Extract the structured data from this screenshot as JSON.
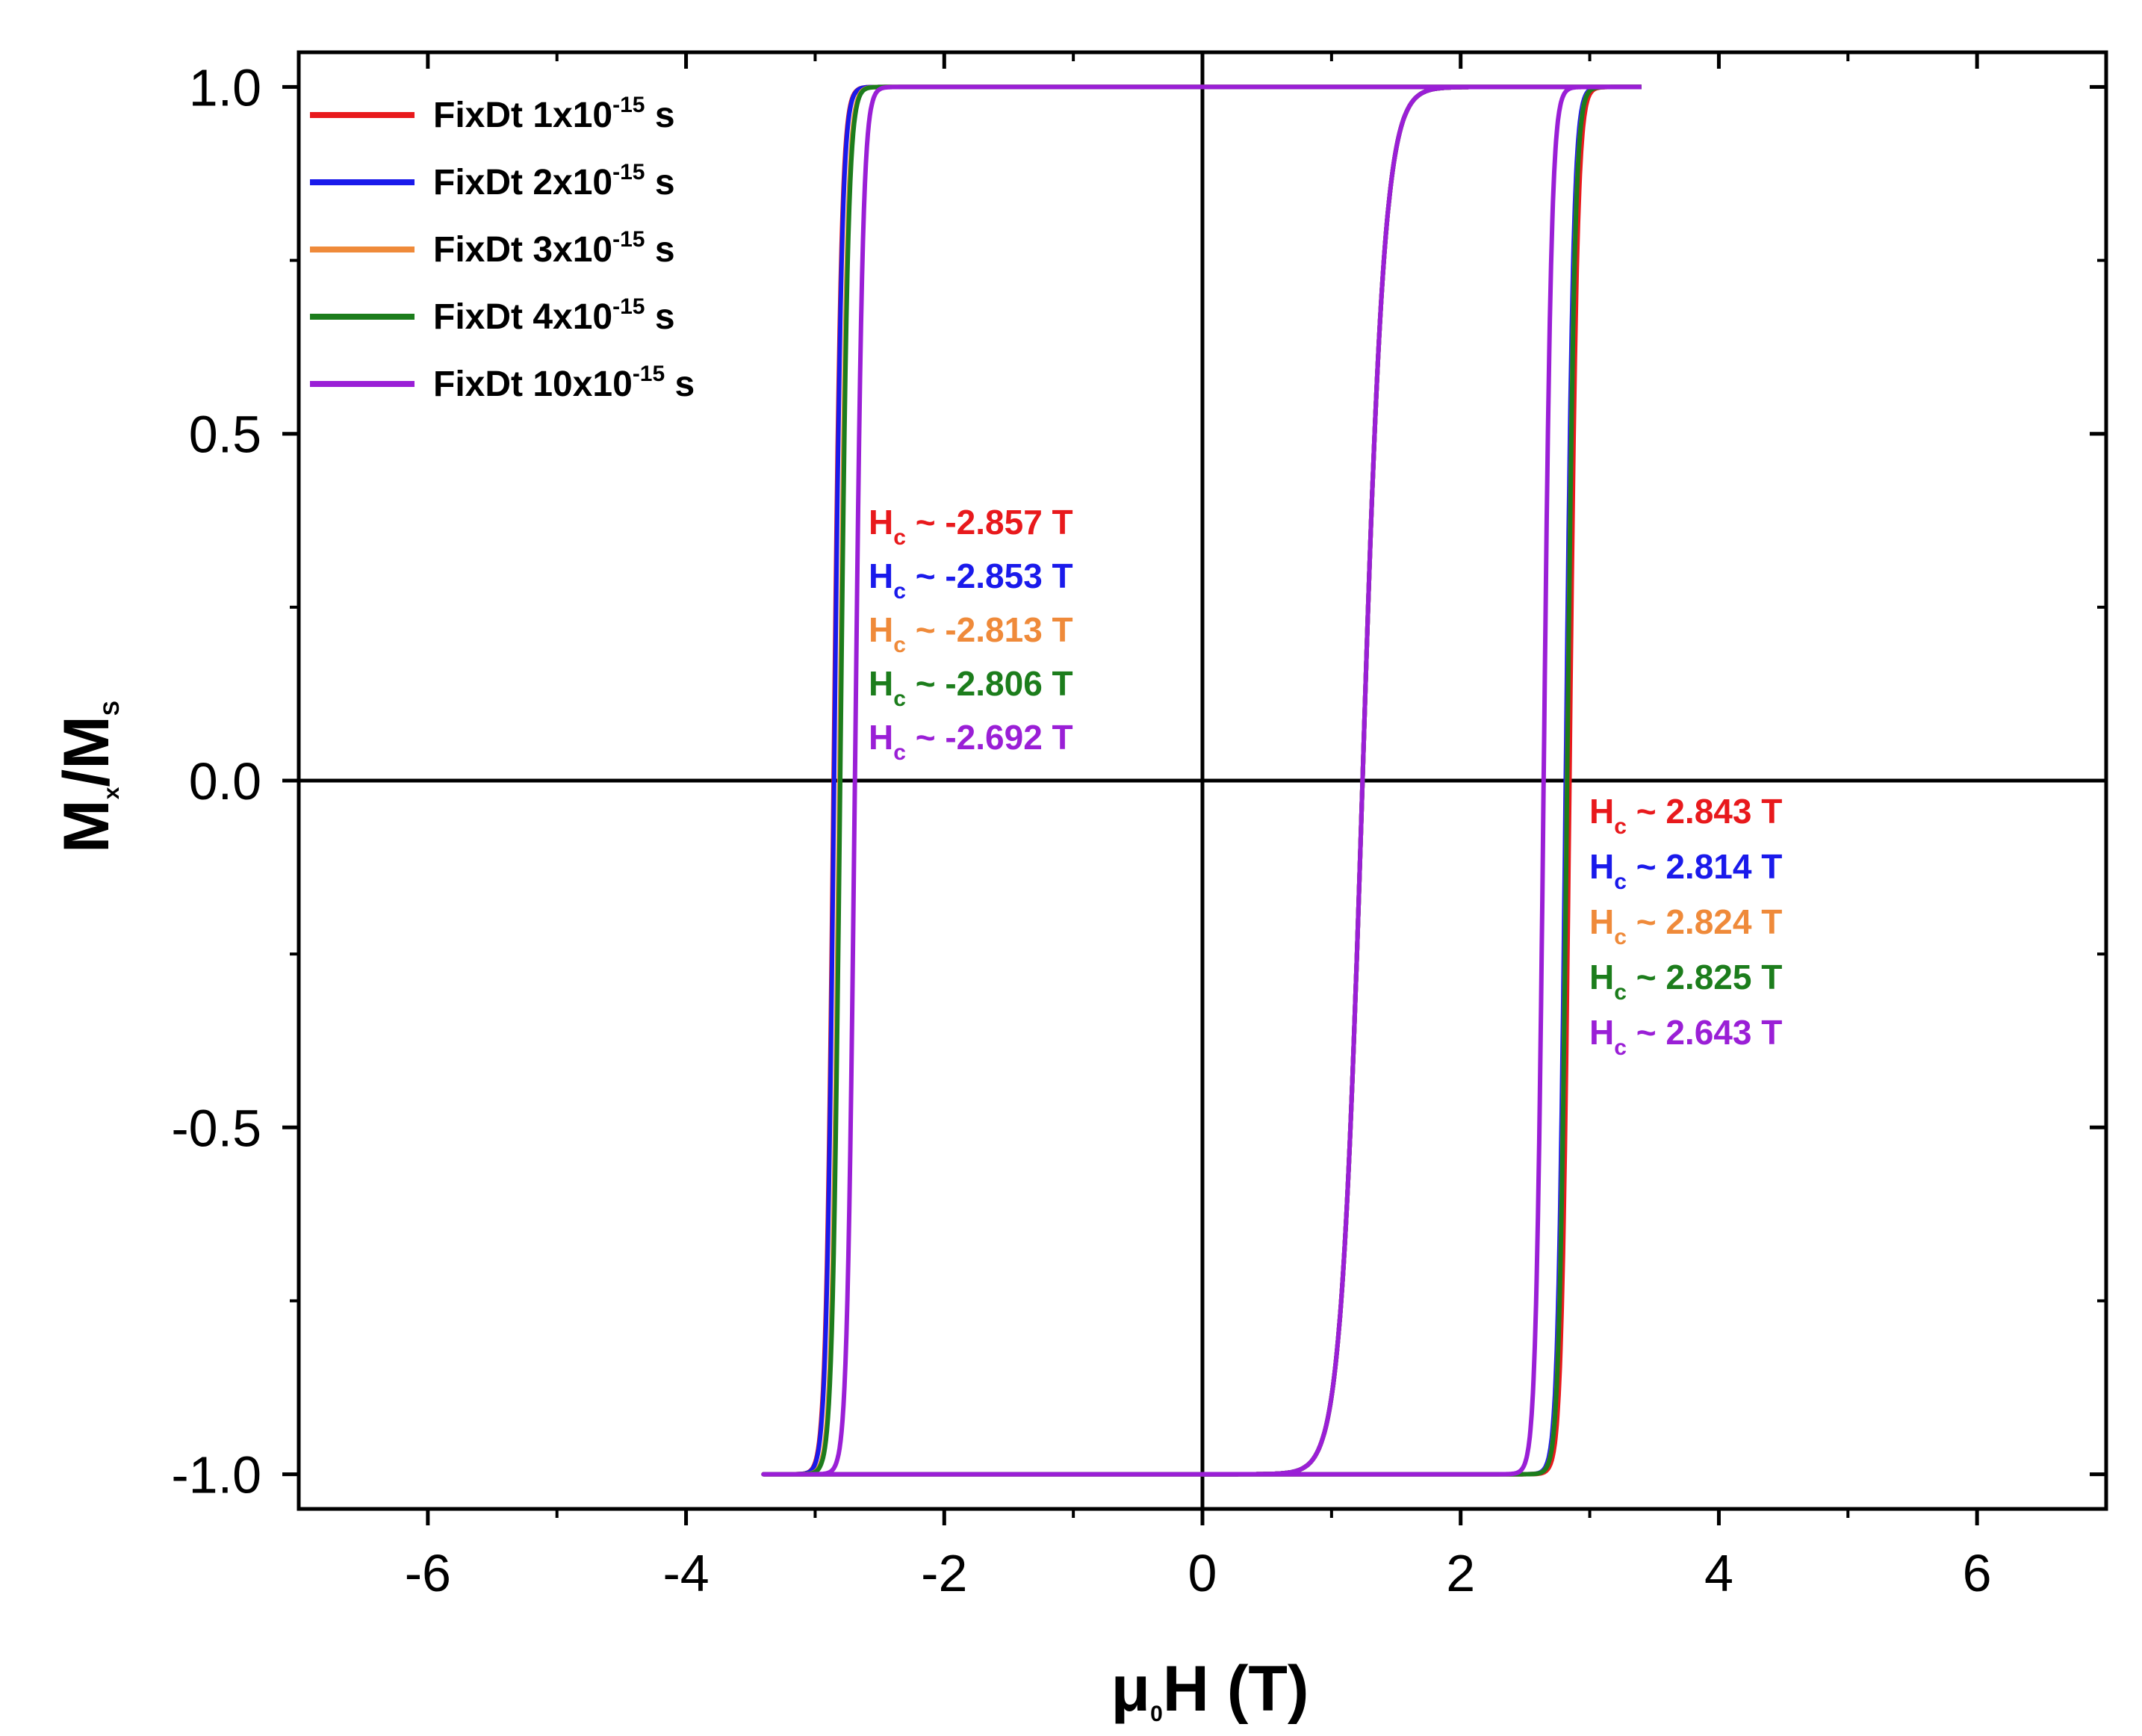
{
  "chart_data": {
    "type": "line",
    "title": "",
    "xlabel": {
      "prefix": "μ",
      "sub": "0",
      "suffix": "H (T)"
    },
    "ylabel": {
      "m": "M",
      "m_sub": "x",
      "slash": "/",
      "s": "M",
      "s_sub": "S"
    },
    "xlim": [
      -7,
      7
    ],
    "ylim": [
      -1.05,
      1.05
    ],
    "x_ticks": [
      -6,
      -4,
      -2,
      0,
      2,
      4,
      6
    ],
    "x_tick_labels": [
      "-6",
      "-4",
      "-2",
      "0",
      "2",
      "4",
      "6"
    ],
    "x_minor_ticks": [
      -5,
      -3,
      -1,
      1,
      3,
      5
    ],
    "y_ticks": [
      -1.0,
      -0.5,
      0.0,
      0.5,
      1.0
    ],
    "y_tick_labels": [
      "-1.0",
      "-0.5",
      "0.0",
      "0.5",
      "1.0"
    ],
    "y_minor_ticks": [
      -0.75,
      -0.25,
      0.25,
      0.75
    ],
    "zero_lines": true,
    "legend_position": "top-left",
    "series": [
      {
        "name": "FixDt 1x10-15 s",
        "label_prefix": "FixDt 1x10",
        "exponent": "-15",
        "label_suffix": " s",
        "color": "#e8191c",
        "hc_down": -2.857,
        "hc_up": 2.843,
        "hc_inner": 1.24,
        "x_max": 3.4,
        "x_min": -3.4,
        "anno_neg": "H",
        "anno_neg_sub": "c",
        "anno_neg_val": " ~ -2.857 T",
        "anno_pos": "H",
        "anno_pos_sub": "c",
        "anno_pos_val": " ~ 2.843 T"
      },
      {
        "name": "FixDt 2x10-15 s",
        "label_prefix": "FixDt 2x10",
        "exponent": "-15",
        "label_suffix": " s",
        "color": "#1a1aeb",
        "hc_down": -2.853,
        "hc_up": 2.814,
        "hc_inner": 1.24,
        "x_max": 3.4,
        "x_min": -3.4,
        "anno_neg": "H",
        "anno_neg_sub": "c",
        "anno_neg_val": " ~ -2.853 T",
        "anno_pos": "H",
        "anno_pos_sub": "c",
        "anno_pos_val": " ~ 2.814 T"
      },
      {
        "name": "FixDt 3x10-15 s",
        "label_prefix": "FixDt 3x10",
        "exponent": "-15",
        "label_suffix": " s",
        "color": "#ef8a3a",
        "hc_down": -2.813,
        "hc_up": 2.824,
        "hc_inner": 1.24,
        "x_max": 3.4,
        "x_min": -3.4,
        "anno_neg": "H",
        "anno_neg_sub": "c",
        "anno_neg_val": " ~ -2.813 T",
        "anno_pos": "H",
        "anno_pos_sub": "c",
        "anno_pos_val": " ~ 2.824 T"
      },
      {
        "name": "FixDt 4x10-15 s",
        "label_prefix": "FixDt 4x10",
        "exponent": "-15",
        "label_suffix": " s",
        "color": "#1c7d1c",
        "hc_down": -2.806,
        "hc_up": 2.825,
        "hc_inner": 1.24,
        "x_max": 3.4,
        "x_min": -3.4,
        "anno_neg": "H",
        "anno_neg_sub": "c",
        "anno_neg_val": " ~ -2.806 T",
        "anno_pos": "H",
        "anno_pos_sub": "c",
        "anno_pos_val": " ~ 2.825 T"
      },
      {
        "name": "FixDt 10x10-15 s",
        "label_prefix": "FixDt 10x10",
        "exponent": "-15",
        "label_suffix": " s",
        "color": "#9a1fd6",
        "hc_down": -2.692,
        "hc_up": 2.643,
        "hc_inner": 1.24,
        "x_max": 3.4,
        "x_min": -3.4,
        "anno_neg": "H",
        "anno_neg_sub": "c",
        "anno_neg_val": " ~ -2.692 T",
        "anno_pos": "H",
        "anno_pos_sub": "c",
        "anno_pos_val": " ~ 2.643 T"
      }
    ]
  }
}
